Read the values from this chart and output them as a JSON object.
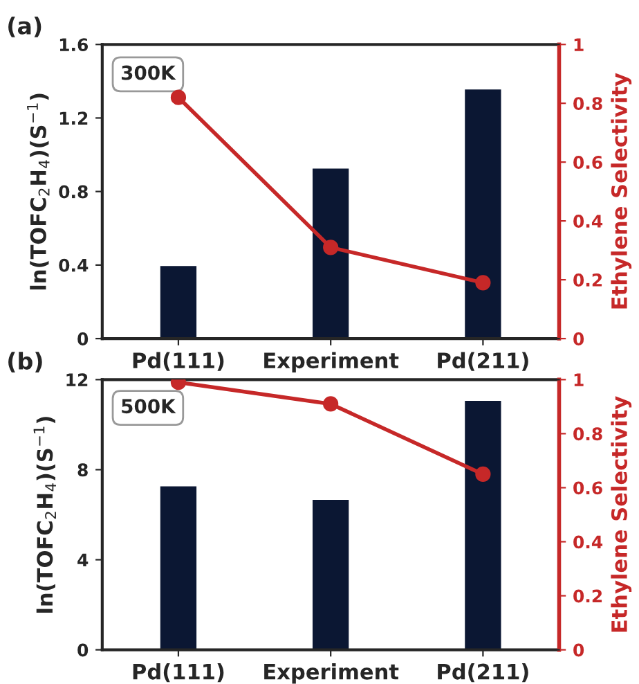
{
  "chart_data": [
    {
      "type": "bar",
      "title": "(a)",
      "ylabel": "ln(TOFC$_{2}$H$_{4}$)(S$^{−1}$)",
      "y2label": "Ethylene Selectivity",
      "categories": [
        "Pd(111)",
        "Experiment",
        "Pd(211)"
      ],
      "series": [
        {
          "color": "#0b1733",
          "values": [
            0.4,
            0.93,
            1.36
          ]
        },
        {
          "type": "line",
          "axis": "y2",
          "color": "#c62828",
          "values": [
            0.82,
            0.31,
            0.19
          ]
        }
      ],
      "ylim": [
        0,
        1.6
      ],
      "yticks": [
        0,
        0.4,
        0.8,
        1.2,
        1.6
      ],
      "y2lim": [
        0,
        1
      ],
      "y2ticks": [
        0,
        0.2,
        0.4,
        0.6,
        0.8,
        1
      ],
      "annotations": [
        "300K"
      ],
      "marker": "circle",
      "grid": false,
      "legend": false
    },
    {
      "type": "bar",
      "title": "(b)",
      "ylabel": "ln(TOFC$_{2}$H$_{4}$)(S$^{−1}$)",
      "y2label": "Ethylene Selectivity",
      "categories": [
        "Pd(111)",
        "Experiment",
        "Pd(211)"
      ],
      "series": [
        {
          "color": "#0b1733",
          "values": [
            7.3,
            6.7,
            11.1
          ]
        },
        {
          "type": "line",
          "axis": "y2",
          "color": "#c62828",
          "values": [
            0.99,
            0.91,
            0.65
          ]
        }
      ],
      "ylim": [
        0,
        12
      ],
      "yticks": [
        0,
        4,
        8,
        12
      ],
      "y2lim": [
        0,
        1
      ],
      "y2ticks": [
        0,
        0.2,
        0.4,
        0.6,
        0.8,
        1
      ],
      "annotations": [
        "500K"
      ],
      "marker": "circle",
      "grid": false,
      "legend": false
    }
  ]
}
